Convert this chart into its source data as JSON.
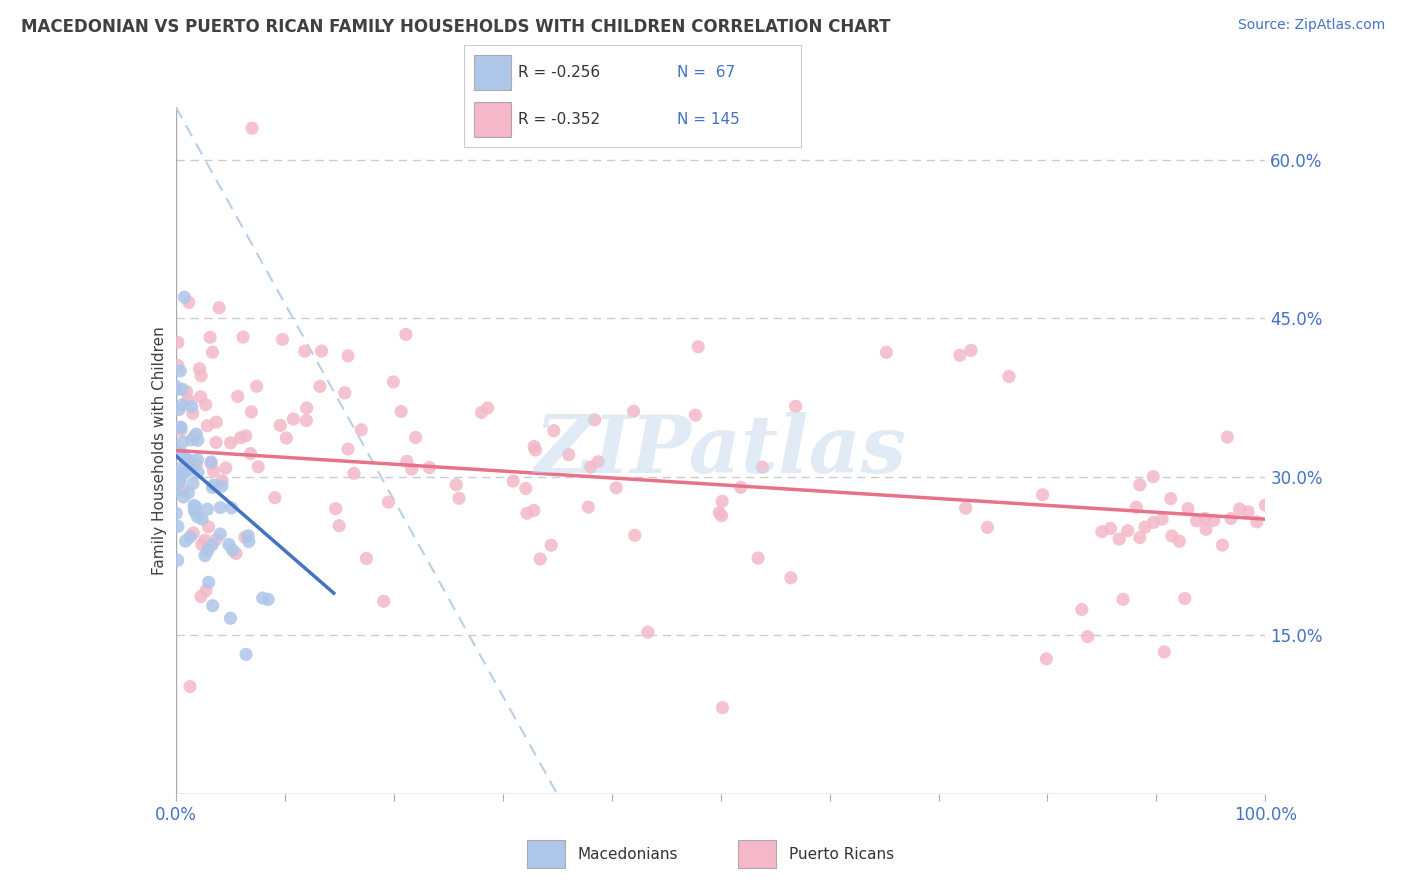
{
  "title": "MACEDONIAN VS PUERTO RICAN FAMILY HOUSEHOLDS WITH CHILDREN CORRELATION CHART",
  "source": "Source: ZipAtlas.com",
  "ylabel": "Family Households with Children",
  "xlim": [
    0,
    100
  ],
  "ylim": [
    0,
    65
  ],
  "x_tick_positions": [
    0,
    10,
    20,
    30,
    40,
    50,
    60,
    70,
    80,
    90,
    100
  ],
  "y_tick_values_right": [
    15,
    30,
    45,
    60
  ],
  "y_tick_labels_right": [
    "15.0%",
    "30.0%",
    "45.0%",
    "60.0%"
  ],
  "grid_color": "#cccccc",
  "background_color": "#ffffff",
  "macedonian_color": "#aec6e8",
  "puerto_rican_color": "#f4b8c8",
  "macedonian_line_color": "#4472c4",
  "puerto_rican_line_color": "#e8728a",
  "diagonal_line_color": "#b8cfe8",
  "watermark": "ZIPatlas",
  "watermark_color": "#c5d8ee",
  "tick_label_color": "#4472c4",
  "title_color": "#404040",
  "source_color": "#4472c4",
  "ylabel_color": "#404040",
  "legend_macedonian_r": "R = -0.256",
  "legend_macedonian_n": "N =  67",
  "legend_puerto_rican_r": "R = -0.352",
  "legend_puerto_rican_n": "N = 145",
  "legend_bottom_macedonian": "Macedonians",
  "legend_bottom_puerto_rican": "Puerto Ricans",
  "mac_seed": 42,
  "pr_seed": 99
}
